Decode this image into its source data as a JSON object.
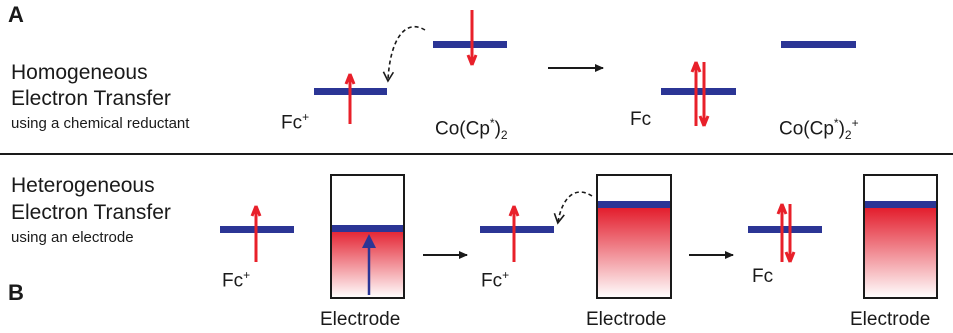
{
  "panel_a": {
    "letter": "A",
    "title_line1": "Homogeneous",
    "title_line2": "Electron Transfer",
    "subtitle": "using a chemical reductant",
    "fc_plus": {
      "base": "Fc",
      "sup": "+"
    },
    "co_reductant": {
      "pre": "Co(Cp",
      "sup": "*",
      "mid": ")",
      "sub": "2",
      "post": ""
    },
    "fc": "Fc",
    "co_product": {
      "pre": "Co(Cp",
      "sup": "*",
      "mid": ")",
      "sub": "2",
      "post": "+"
    }
  },
  "panel_b": {
    "letter": "B",
    "title_line1": "Heterogeneous",
    "title_line2": "Electron Transfer",
    "subtitle": "using an electrode",
    "fc_plus_1": {
      "base": "Fc",
      "sup": "+"
    },
    "fc_plus_2": {
      "base": "Fc",
      "sup": "+"
    },
    "fc": "Fc",
    "electrode_1": "Electrode",
    "electrode_2": "Electrode",
    "electrode_3": "Electrode"
  },
  "colors": {
    "level": "#2b3595",
    "electron": "#e8202a",
    "electrode_fill_top": "#e31e2d",
    "electrode_fill_bottom": "#ffffff",
    "up_arrow": "#2b3595",
    "ink": "#1a1a1a"
  }
}
